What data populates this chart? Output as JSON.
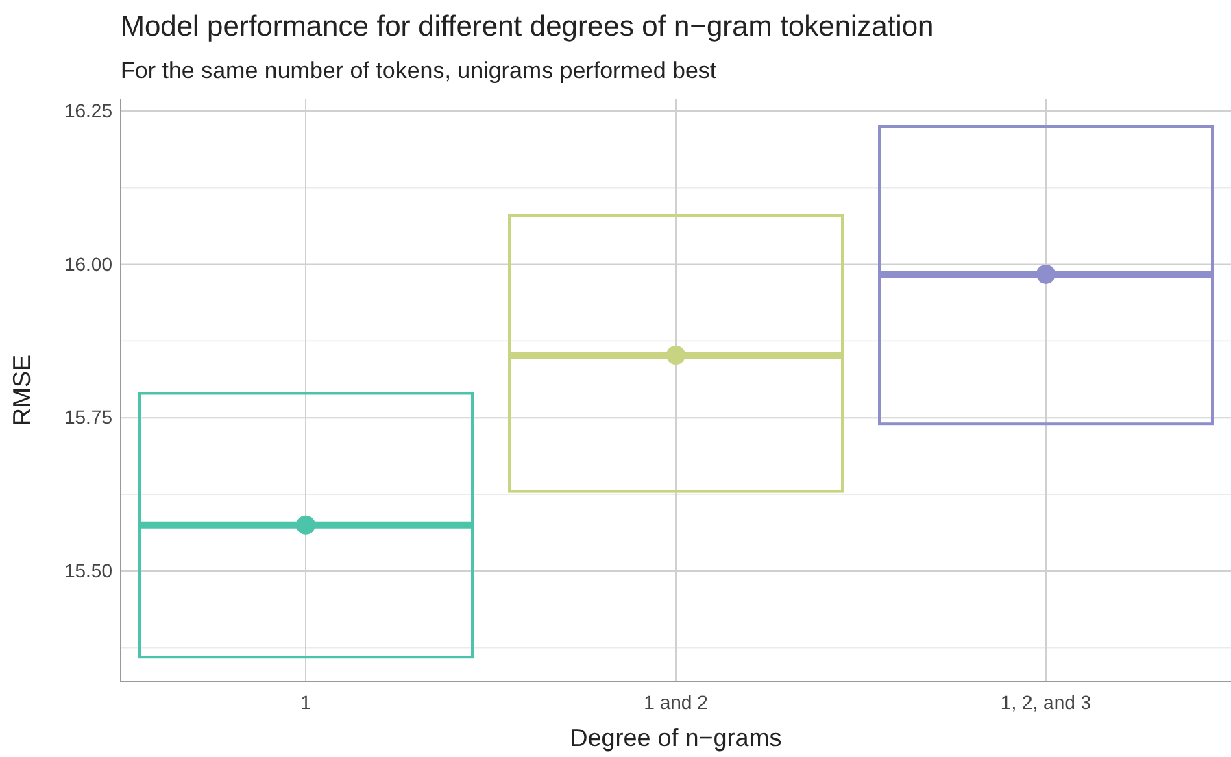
{
  "chart_data": {
    "type": "box",
    "title": "Model performance for different degrees of n−gram tokenization",
    "subtitle": "For the same number of tokens, unigrams performed best",
    "xlabel": "Degree of n−grams",
    "ylabel": "RMSE",
    "categories": [
      "1",
      "1 and 2",
      "1, 2, and 3"
    ],
    "colors": [
      "#4cc4aa",
      "#c9d483",
      "#8e8ecc"
    ],
    "boxes": [
      {
        "low": 15.36,
        "q1": 15.36,
        "median": 15.575,
        "q3": 15.79,
        "high": 15.79,
        "mean": 15.575
      },
      {
        "low": 15.63,
        "q1": 15.63,
        "median": 15.852,
        "q3": 16.08,
        "high": 16.08,
        "mean": 15.852
      },
      {
        "low": 15.74,
        "q1": 15.74,
        "median": 15.984,
        "q3": 16.225,
        "high": 16.225,
        "mean": 15.984
      }
    ],
    "ylim": [
      15.32,
      16.27
    ],
    "yticks": [
      {
        "value": 15.375,
        "label": null
      },
      {
        "value": 15.5,
        "label": "15.50"
      },
      {
        "value": 15.625,
        "label": null
      },
      {
        "value": 15.75,
        "label": "15.75"
      },
      {
        "value": 15.875,
        "label": null
      },
      {
        "value": 16.0,
        "label": "16.00"
      },
      {
        "value": 16.125,
        "label": null
      },
      {
        "value": 16.25,
        "label": "16.25"
      }
    ],
    "grid": true
  }
}
